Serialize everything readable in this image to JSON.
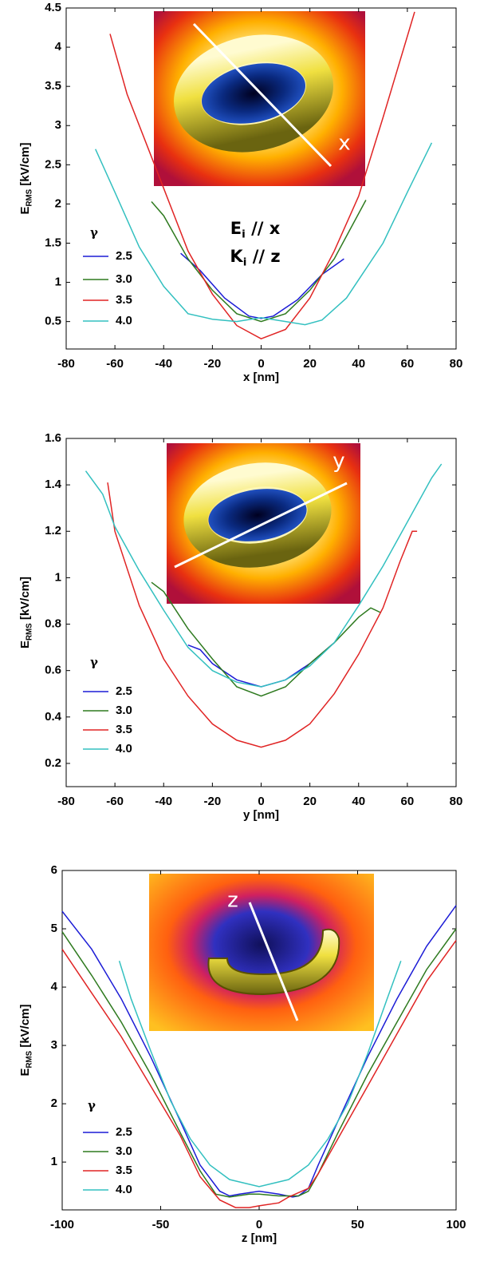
{
  "chart_data": [
    {
      "type": "line",
      "xlabel": "x [nm]",
      "ylabel": {
        "text": "E",
        "sub": "RMS",
        "rest": " [kV/cm]"
      },
      "xlim": [
        -80,
        80
      ],
      "xticks": [
        -80,
        -60,
        -40,
        -20,
        0,
        20,
        40,
        60,
        80
      ],
      "ylim": [
        0.15,
        4.5
      ],
      "yticks": [
        0.5,
        1,
        1.5,
        2,
        2.5,
        3,
        3.5,
        4,
        4.5
      ],
      "legend_title": "γ",
      "legend": "lower left",
      "annotations": [
        {
          "text": "E",
          "sub": "i",
          "rest": " // x"
        },
        {
          "text": "K",
          "sub": "i",
          "rest": " // z"
        }
      ],
      "inset_label": "x",
      "series": [
        {
          "name": "2.5",
          "color": "#1c1cd6",
          "x": [
            -33,
            -25,
            -15,
            -5,
            0,
            5,
            15,
            25,
            34
          ],
          "values": [
            1.37,
            1.15,
            0.8,
            0.57,
            0.54,
            0.57,
            0.78,
            1.1,
            1.3
          ]
        },
        {
          "name": "3.0",
          "color": "#2e7a1f",
          "x": [
            -45,
            -40,
            -30,
            -20,
            -10,
            0,
            10,
            20,
            30,
            43
          ],
          "values": [
            2.03,
            1.85,
            1.3,
            0.9,
            0.6,
            0.5,
            0.6,
            0.9,
            1.3,
            2.05
          ]
        },
        {
          "name": "3.5",
          "color": "#e02424",
          "x": [
            -62,
            -55,
            -40,
            -30,
            -20,
            -10,
            0,
            10,
            20,
            30,
            40,
            50,
            63
          ],
          "values": [
            4.17,
            3.4,
            2.2,
            1.4,
            0.85,
            0.45,
            0.28,
            0.4,
            0.8,
            1.4,
            2.1,
            3.1,
            4.45
          ]
        },
        {
          "name": "4.0",
          "color": "#33c0c0",
          "x": [
            -68,
            -60,
            -50,
            -40,
            -30,
            -20,
            -10,
            0,
            10,
            18,
            25,
            35,
            50,
            60,
            70
          ],
          "values": [
            2.7,
            2.15,
            1.45,
            0.95,
            0.6,
            0.53,
            0.5,
            0.55,
            0.5,
            0.46,
            0.52,
            0.8,
            1.5,
            2.15,
            2.78
          ]
        }
      ]
    },
    {
      "type": "line",
      "xlabel": "y [nm]",
      "ylabel": {
        "text": "E",
        "sub": "RMS",
        "rest": " [kV/cm]"
      },
      "xlim": [
        -80,
        80
      ],
      "xticks": [
        -80,
        -60,
        -40,
        -20,
        0,
        20,
        40,
        60,
        80
      ],
      "ylim": [
        0.1,
        1.6
      ],
      "yticks": [
        0.2,
        0.4,
        0.6,
        0.8,
        1,
        1.2,
        1.4,
        1.6
      ],
      "legend_title": "γ",
      "legend": "lower left",
      "inset_label": "y",
      "series": [
        {
          "name": "2.5",
          "color": "#1c1cd6",
          "x": [
            -30,
            -25,
            -20,
            -10,
            0,
            10,
            20,
            30
          ],
          "values": [
            0.71,
            0.69,
            0.63,
            0.56,
            0.53,
            0.56,
            0.63,
            0.72
          ]
        },
        {
          "name": "3.0",
          "color": "#2e7a1f",
          "x": [
            -45,
            -40,
            -30,
            -20,
            -10,
            0,
            10,
            20,
            30,
            40,
            45,
            49
          ],
          "values": [
            0.98,
            0.94,
            0.78,
            0.65,
            0.53,
            0.49,
            0.53,
            0.63,
            0.72,
            0.83,
            0.87,
            0.85
          ]
        },
        {
          "name": "3.5",
          "color": "#e02424",
          "x": [
            -63,
            -60,
            -50,
            -40,
            -30,
            -20,
            -10,
            0,
            10,
            20,
            30,
            40,
            50,
            57,
            62,
            64
          ],
          "values": [
            1.41,
            1.2,
            0.88,
            0.65,
            0.49,
            0.37,
            0.3,
            0.27,
            0.3,
            0.37,
            0.5,
            0.67,
            0.87,
            1.07,
            1.2,
            1.2
          ]
        },
        {
          "name": "4.0",
          "color": "#33c0c0",
          "x": [
            -72,
            -65,
            -60,
            -50,
            -40,
            -30,
            -20,
            -10,
            0,
            10,
            20,
            30,
            40,
            50,
            60,
            70,
            74
          ],
          "values": [
            1.46,
            1.36,
            1.22,
            1.03,
            0.86,
            0.7,
            0.6,
            0.55,
            0.53,
            0.56,
            0.62,
            0.72,
            0.88,
            1.05,
            1.24,
            1.43,
            1.49
          ]
        }
      ]
    },
    {
      "type": "line",
      "xlabel": "z [nm]",
      "ylabel": {
        "text": "E",
        "sub": "RMS",
        "rest": " [kV/cm]"
      },
      "xlim": [
        -100,
        100
      ],
      "xticks": [
        -100,
        -50,
        0,
        50,
        100
      ],
      "ylim": [
        0.18,
        6
      ],
      "yticks": [
        1,
        2,
        3,
        4,
        5,
        6
      ],
      "legend_title": "γ",
      "legend": "lower left",
      "inset_label": "z",
      "series": [
        {
          "name": "2.5",
          "color": "#1c1cd6",
          "x": [
            -100,
            -85,
            -70,
            -55,
            -40,
            -30,
            -20,
            -15,
            -10,
            0,
            10,
            17,
            20,
            25,
            30,
            40,
            55,
            70,
            85,
            100
          ],
          "values": [
            5.3,
            4.65,
            3.8,
            2.8,
            1.7,
            0.95,
            0.5,
            0.42,
            0.45,
            0.5,
            0.45,
            0.4,
            0.42,
            0.55,
            0.95,
            1.7,
            2.8,
            3.8,
            4.7,
            5.4
          ]
        },
        {
          "name": "3.0",
          "color": "#2e7a1f",
          "x": [
            -100,
            -85,
            -70,
            -55,
            -40,
            -30,
            -22,
            -15,
            -5,
            0,
            10,
            20,
            25,
            30,
            40,
            55,
            70,
            85,
            100
          ],
          "values": [
            4.95,
            4.2,
            3.4,
            2.5,
            1.5,
            0.85,
            0.45,
            0.4,
            0.45,
            0.45,
            0.42,
            0.42,
            0.5,
            0.8,
            1.5,
            2.5,
            3.4,
            4.3,
            5.0
          ]
        },
        {
          "name": "3.5",
          "color": "#e02424",
          "x": [
            -100,
            -85,
            -70,
            -55,
            -40,
            -30,
            -20,
            -12,
            -5,
            0,
            10,
            15,
            25,
            30,
            40,
            55,
            70,
            85,
            100
          ],
          "values": [
            4.65,
            3.9,
            3.15,
            2.3,
            1.45,
            0.75,
            0.35,
            0.22,
            0.22,
            0.25,
            0.3,
            0.4,
            0.55,
            0.8,
            1.4,
            2.3,
            3.2,
            4.1,
            4.8
          ]
        },
        {
          "name": "4.0",
          "color": "#33c0c0",
          "x": [
            -71,
            -65,
            -55,
            -45,
            -35,
            -25,
            -15,
            0,
            15,
            25,
            35,
            45,
            55,
            65,
            72
          ],
          "values": [
            4.45,
            3.8,
            2.9,
            2.05,
            1.4,
            0.95,
            0.7,
            0.58,
            0.7,
            0.95,
            1.4,
            2.0,
            2.85,
            3.8,
            4.45
          ]
        }
      ]
    }
  ]
}
